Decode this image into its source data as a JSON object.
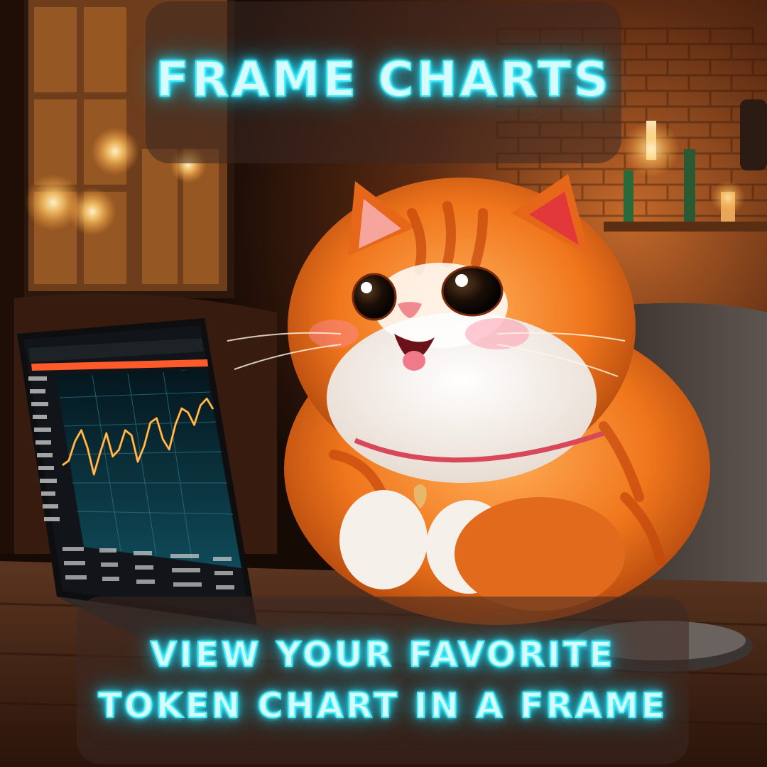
{
  "banner": {
    "title": "FRAME CHARTS",
    "subtitle_line1": "VIEW YOUR FAVORITE",
    "subtitle_line2": "TOKEN CHART IN A FRAME"
  },
  "illustration": {
    "subject": "cat-icon",
    "prop": "laptop-icon",
    "chart_line_color": "#ff9a1f",
    "chart_bg_color": "#0e3a46",
    "neon_color": "#3ff0ff"
  },
  "chart_points": [
    0.3,
    0.34,
    0.52,
    0.62,
    0.45,
    0.2,
    0.4,
    0.58,
    0.36,
    0.42,
    0.6,
    0.55,
    0.3,
    0.44,
    0.66,
    0.7,
    0.5,
    0.4,
    0.63,
    0.78,
    0.74,
    0.62,
    0.8,
    0.86,
    0.76
  ]
}
